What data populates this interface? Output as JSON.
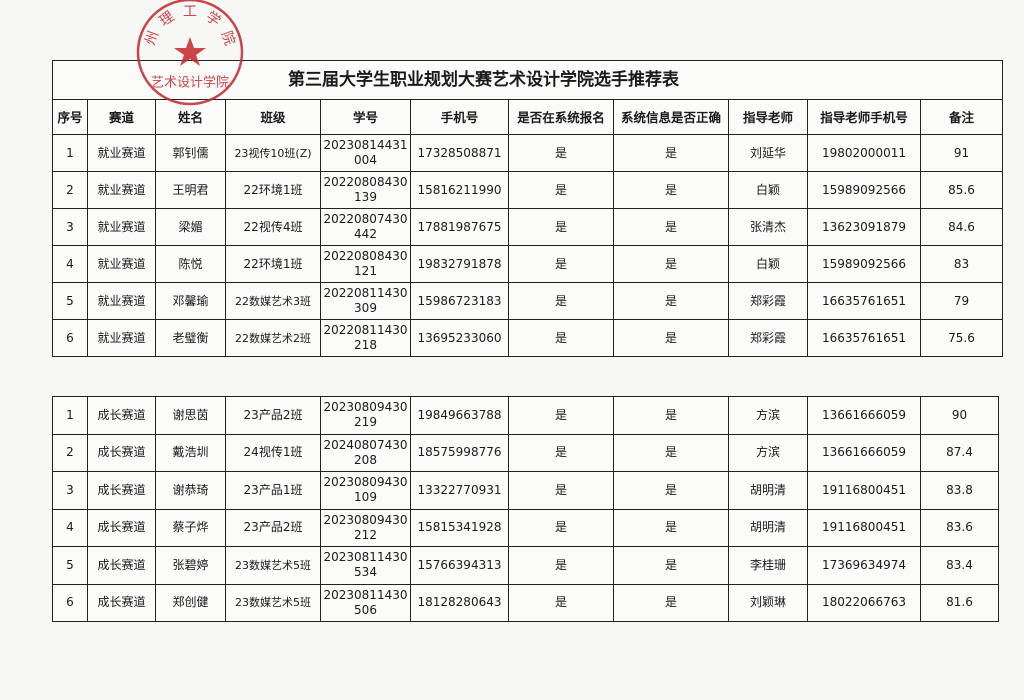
{
  "title": "第三届大学生职业规划大赛艺术设计学院选手推荐表",
  "headers": [
    "序号",
    "赛道",
    "姓名",
    "班级",
    "学号",
    "手机号",
    "是否在系统报名",
    "系统信息是否正确",
    "指导老师",
    "指导老师手机号",
    "备注"
  ],
  "stamp": {
    "text_top": "州理工学院",
    "text_bottom": "艺术设计学院",
    "color": "#c0282e"
  },
  "table1": [
    {
      "no": "1",
      "track": "就业赛道",
      "name": "郭钊儒",
      "class": "23视传10班(Z)",
      "id1": "20230814431",
      "id2": "004",
      "phone": "17328508871",
      "registered": "是",
      "info_correct": "是",
      "teacher": "刘延华",
      "teacher_phone": "19802000011",
      "note": "91"
    },
    {
      "no": "2",
      "track": "就业赛道",
      "name": "王明君",
      "class": "22环境1班",
      "id1": "20220808430",
      "id2": "139",
      "phone": "15816211990",
      "registered": "是",
      "info_correct": "是",
      "teacher": "白颖",
      "teacher_phone": "15989092566",
      "note": "85.6"
    },
    {
      "no": "3",
      "track": "就业赛道",
      "name": "梁媚",
      "class": "22视传4班",
      "id1": "20220807430",
      "id2": "442",
      "phone": "17881987675",
      "registered": "是",
      "info_correct": "是",
      "teacher": "张清杰",
      "teacher_phone": "13623091879",
      "note": "84.6"
    },
    {
      "no": "4",
      "track": "就业赛道",
      "name": "陈悦",
      "class": "22环境1班",
      "id1": "20220808430",
      "id2": "121",
      "phone": "19832791878",
      "registered": "是",
      "info_correct": "是",
      "teacher": "白颖",
      "teacher_phone": "15989092566",
      "note": "83"
    },
    {
      "no": "5",
      "track": "就业赛道",
      "name": "邓馨瑜",
      "class": "22数媒艺术3班",
      "id1": "20220811430",
      "id2": "309",
      "phone": "15986723183",
      "registered": "是",
      "info_correct": "是",
      "teacher": "郑彩霞",
      "teacher_phone": "16635761651",
      "note": "79"
    },
    {
      "no": "6",
      "track": "就业赛道",
      "name": "老璧衡",
      "class": "22数媒艺术2班",
      "id1": "20220811430",
      "id2": "218",
      "phone": "13695233060",
      "registered": "是",
      "info_correct": "是",
      "teacher": "郑彩霞",
      "teacher_phone": "16635761651",
      "note": "75.6"
    }
  ],
  "table2": [
    {
      "no": "1",
      "track": "成长赛道",
      "name": "谢思茵",
      "class": "23产品2班",
      "id1": "20230809430",
      "id2": "219",
      "phone": "19849663788",
      "registered": "是",
      "info_correct": "是",
      "teacher": "方滨",
      "teacher_phone": "13661666059",
      "note": "90"
    },
    {
      "no": "2",
      "track": "成长赛道",
      "name": "戴浩圳",
      "class": "24视传1班",
      "id1": "20240807430",
      "id2": "208",
      "phone": "18575998776",
      "registered": "是",
      "info_correct": "是",
      "teacher": "方滨",
      "teacher_phone": "13661666059",
      "note": "87.4"
    },
    {
      "no": "3",
      "track": "成长赛道",
      "name": "谢恭琦",
      "class": "23产品1班",
      "id1": "20230809430",
      "id2": "109",
      "phone": "13322770931",
      "registered": "是",
      "info_correct": "是",
      "teacher": "胡明清",
      "teacher_phone": "19116800451",
      "note": "83.8"
    },
    {
      "no": "4",
      "track": "成长赛道",
      "name": "蔡子烨",
      "class": "23产品2班",
      "id1": "20230809430",
      "id2": "212",
      "phone": "15815341928",
      "registered": "是",
      "info_correct": "是",
      "teacher": "胡明清",
      "teacher_phone": "19116800451",
      "note": "83.6"
    },
    {
      "no": "5",
      "track": "成长赛道",
      "name": "张碧婷",
      "class": "23数媒艺术5班",
      "id1": "20230811430",
      "id2": "534",
      "phone": "15766394313",
      "registered": "是",
      "info_correct": "是",
      "teacher": "李桂珊",
      "teacher_phone": "17369634974",
      "note": "83.4"
    },
    {
      "no": "6",
      "track": "成长赛道",
      "name": "郑创健",
      "class": "23数媒艺术5班",
      "id1": "20230811430",
      "id2": "506",
      "phone": "18128280643",
      "registered": "是",
      "info_correct": "是",
      "teacher": "刘颖琳",
      "teacher_phone": "18022066763",
      "note": "81.6"
    }
  ]
}
